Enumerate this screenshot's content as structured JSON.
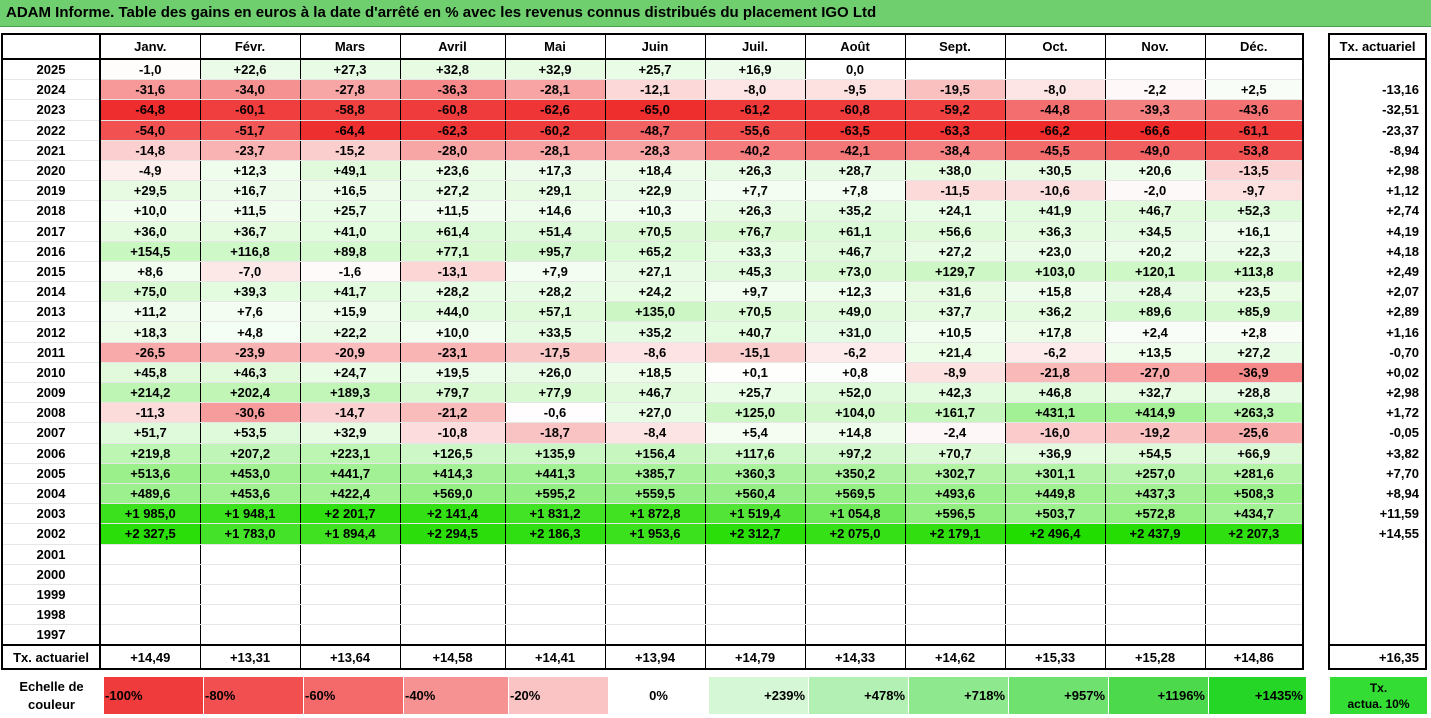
{
  "title": "ADAM Informe. Table des gains en euros à la date d'arrêté en % avec les revenus connus distribués du placement IGO Ltd",
  "months": [
    "Janv.",
    "Févr.",
    "Mars",
    "Avril",
    "Mai",
    "Juin",
    "Juil.",
    "Août",
    "Sept.",
    "Oct.",
    "Nov.",
    "Déc."
  ],
  "side_header": "Tx. actuariel",
  "rows": [
    {
      "year": "2025",
      "values": [
        "-1,0",
        "+22,6",
        "+27,3",
        "+32,8",
        "+32,9",
        "+25,7",
        "+16,9",
        "0,0",
        "",
        "",
        "",
        ""
      ],
      "tx": ""
    },
    {
      "year": "2024",
      "values": [
        "-31,6",
        "-34,0",
        "-27,8",
        "-36,3",
        "-28,1",
        "-12,1",
        "-8,0",
        "-9,5",
        "-19,5",
        "-8,0",
        "-2,2",
        "+2,5"
      ],
      "tx": "-13,16"
    },
    {
      "year": "2023",
      "values": [
        "-64,8",
        "-60,1",
        "-58,8",
        "-60,8",
        "-62,6",
        "-65,0",
        "-61,2",
        "-60,8",
        "-59,2",
        "-44,8",
        "-39,3",
        "-43,6"
      ],
      "tx": "-32,51"
    },
    {
      "year": "2022",
      "values": [
        "-54,0",
        "-51,7",
        "-64,4",
        "-62,3",
        "-60,2",
        "-48,7",
        "-55,6",
        "-63,5",
        "-63,3",
        "-66,2",
        "-66,6",
        "-61,1"
      ],
      "tx": "-23,37"
    },
    {
      "year": "2021",
      "values": [
        "-14,8",
        "-23,7",
        "-15,2",
        "-28,0",
        "-28,1",
        "-28,3",
        "-40,2",
        "-42,1",
        "-38,4",
        "-45,5",
        "-49,0",
        "-53,8"
      ],
      "tx": "-8,94"
    },
    {
      "year": "2020",
      "values": [
        "-4,9",
        "+12,3",
        "+49,1",
        "+23,6",
        "+17,3",
        "+18,4",
        "+26,3",
        "+28,7",
        "+38,0",
        "+30,5",
        "+20,6",
        "-13,5"
      ],
      "tx": "+2,98"
    },
    {
      "year": "2019",
      "values": [
        "+29,5",
        "+16,7",
        "+16,5",
        "+27,2",
        "+29,1",
        "+22,9",
        "+7,7",
        "+7,8",
        "-11,5",
        "-10,6",
        "-2,0",
        "-9,7"
      ],
      "tx": "+1,12"
    },
    {
      "year": "2018",
      "values": [
        "+10,0",
        "+11,5",
        "+25,7",
        "+11,5",
        "+14,6",
        "+10,3",
        "+26,3",
        "+35,2",
        "+24,1",
        "+41,9",
        "+46,7",
        "+52,3"
      ],
      "tx": "+2,74"
    },
    {
      "year": "2017",
      "values": [
        "+36,0",
        "+36,7",
        "+41,0",
        "+61,4",
        "+51,4",
        "+70,5",
        "+76,7",
        "+61,1",
        "+56,6",
        "+36,3",
        "+34,5",
        "+16,1"
      ],
      "tx": "+4,19"
    },
    {
      "year": "2016",
      "values": [
        "+154,5",
        "+116,8",
        "+89,8",
        "+77,1",
        "+95,7",
        "+65,2",
        "+33,3",
        "+46,7",
        "+27,2",
        "+23,0",
        "+20,2",
        "+22,3"
      ],
      "tx": "+4,18"
    },
    {
      "year": "2015",
      "values": [
        "+8,6",
        "-7,0",
        "-1,6",
        "-13,1",
        "+7,9",
        "+27,1",
        "+45,3",
        "+73,0",
        "+129,7",
        "+103,0",
        "+120,1",
        "+113,8"
      ],
      "tx": "+2,49"
    },
    {
      "year": "2014",
      "values": [
        "+75,0",
        "+39,3",
        "+41,7",
        "+28,2",
        "+28,2",
        "+24,2",
        "+9,7",
        "+12,3",
        "+31,6",
        "+15,8",
        "+28,4",
        "+23,5"
      ],
      "tx": "+2,07"
    },
    {
      "year": "2013",
      "values": [
        "+11,2",
        "+7,6",
        "+15,9",
        "+44,0",
        "+57,1",
        "+135,0",
        "+70,5",
        "+49,0",
        "+37,7",
        "+36,2",
        "+89,6",
        "+85,9"
      ],
      "tx": "+2,89"
    },
    {
      "year": "2012",
      "values": [
        "+18,3",
        "+4,8",
        "+22,2",
        "+10,0",
        "+33,5",
        "+35,2",
        "+40,7",
        "+31,0",
        "+10,5",
        "+17,8",
        "+2,4",
        "+2,8"
      ],
      "tx": "+1,16"
    },
    {
      "year": "2011",
      "values": [
        "-26,5",
        "-23,9",
        "-20,9",
        "-23,1",
        "-17,5",
        "-8,6",
        "-15,1",
        "-6,2",
        "+21,4",
        "-6,2",
        "+13,5",
        "+27,2"
      ],
      "tx": "-0,70"
    },
    {
      "year": "2010",
      "values": [
        "+45,8",
        "+46,3",
        "+24,7",
        "+19,5",
        "+26,0",
        "+18,5",
        "+0,1",
        "+0,8",
        "-8,9",
        "-21,8",
        "-27,0",
        "-36,9"
      ],
      "tx": "+0,02"
    },
    {
      "year": "2009",
      "values": [
        "+214,2",
        "+202,4",
        "+189,3",
        "+79,7",
        "+77,9",
        "+46,7",
        "+25,7",
        "+52,0",
        "+42,3",
        "+46,8",
        "+32,7",
        "+28,8"
      ],
      "tx": "+2,98"
    },
    {
      "year": "2008",
      "values": [
        "-11,3",
        "-30,6",
        "-14,7",
        "-21,2",
        "-0,6",
        "+27,0",
        "+125,0",
        "+104,0",
        "+161,7",
        "+431,1",
        "+414,9",
        "+263,3"
      ],
      "tx": "+1,72"
    },
    {
      "year": "2007",
      "values": [
        "+51,7",
        "+53,5",
        "+32,9",
        "-10,8",
        "-18,7",
        "-8,4",
        "+5,4",
        "+14,8",
        "-2,4",
        "-16,0",
        "-19,2",
        "-25,6"
      ],
      "tx": "-0,05"
    },
    {
      "year": "2006",
      "values": [
        "+219,8",
        "+207,2",
        "+223,1",
        "+126,5",
        "+135,9",
        "+156,4",
        "+117,6",
        "+97,2",
        "+70,7",
        "+36,9",
        "+54,5",
        "+66,9"
      ],
      "tx": "+3,82"
    },
    {
      "year": "2005",
      "values": [
        "+513,6",
        "+453,0",
        "+441,7",
        "+414,3",
        "+441,3",
        "+385,7",
        "+360,3",
        "+350,2",
        "+302,7",
        "+301,1",
        "+257,0",
        "+281,6"
      ],
      "tx": "+7,70"
    },
    {
      "year": "2004",
      "values": [
        "+489,6",
        "+453,6",
        "+422,4",
        "+569,0",
        "+595,2",
        "+559,5",
        "+560,4",
        "+569,5",
        "+493,6",
        "+449,8",
        "+437,3",
        "+508,3"
      ],
      "tx": "+8,94"
    },
    {
      "year": "2003",
      "values": [
        "+1 985,0",
        "+1 948,1",
        "+2 201,7",
        "+2 141,4",
        "+1 831,2",
        "+1 872,8",
        "+1 519,4",
        "+1 054,8",
        "+596,5",
        "+503,7",
        "+572,8",
        "+434,7"
      ],
      "tx": "+11,59"
    },
    {
      "year": "2002",
      "values": [
        "+2 327,5",
        "+1 783,0",
        "+1 894,4",
        "+2 294,5",
        "+2 186,3",
        "+1 953,6",
        "+2 312,7",
        "+2 075,0",
        "+2 179,1",
        "+2 496,4",
        "+2 437,9",
        "+2 207,3"
      ],
      "tx": "+14,55"
    },
    {
      "year": "2001",
      "values": [
        "",
        "",
        "",
        "",
        "",
        "",
        "",
        "",
        "",
        "",
        "",
        ""
      ],
      "tx": ""
    },
    {
      "year": "2000",
      "values": [
        "",
        "",
        "",
        "",
        "",
        "",
        "",
        "",
        "",
        "",
        "",
        ""
      ],
      "tx": ""
    },
    {
      "year": "1999",
      "values": [
        "",
        "",
        "",
        "",
        "",
        "",
        "",
        "",
        "",
        "",
        "",
        ""
      ],
      "tx": ""
    },
    {
      "year": "1998",
      "values": [
        "",
        "",
        "",
        "",
        "",
        "",
        "",
        "",
        "",
        "",
        "",
        ""
      ],
      "tx": ""
    },
    {
      "year": "1997",
      "values": [
        "",
        "",
        "",
        "",
        "",
        "",
        "",
        "",
        "",
        "",
        "",
        ""
      ],
      "tx": ""
    }
  ],
  "footer": {
    "label": "Tx. actuariel",
    "values": [
      "+14,49",
      "+13,31",
      "+13,64",
      "+14,58",
      "+14,41",
      "+13,94",
      "+14,79",
      "+14,33",
      "+14,62",
      "+15,33",
      "+15,28",
      "+14,86"
    ],
    "tx": "+16,35"
  },
  "scale": {
    "label_line1": "Echelle de",
    "label_line2": "couleur",
    "cells": [
      {
        "text": "-100%",
        "color": "#ef3b3b",
        "align": "left"
      },
      {
        "text": "-80%",
        "color": "#f25050",
        "align": "left"
      },
      {
        "text": "-60%",
        "color": "#f46a6a",
        "align": "left"
      },
      {
        "text": "-40%",
        "color": "#f79292",
        "align": "left"
      },
      {
        "text": "-20%",
        "color": "#fbc4c4",
        "align": "left"
      },
      {
        "text": "0%",
        "color": "#ffffff",
        "align": "center"
      },
      {
        "text": "+239%",
        "color": "#d6f7d6",
        "align": "right"
      },
      {
        "text": "+478%",
        "color": "#b3f0b3",
        "align": "right"
      },
      {
        "text": "+718%",
        "color": "#8ee88e",
        "align": "right"
      },
      {
        "text": "+957%",
        "color": "#6ee16e",
        "align": "right"
      },
      {
        "text": "+1196%",
        "color": "#4cda4c",
        "align": "right"
      },
      {
        "text": "+1435%",
        "color": "#26d626",
        "align": "right"
      }
    ],
    "legend_line1": "Tx.",
    "legend_line2": "actua. 10%",
    "legend_color": "#33dd33"
  },
  "colors": {
    "title_bg": "#6fcf6f",
    "negative_max": "#ee2a2a",
    "positive_max": "#22dd00"
  }
}
